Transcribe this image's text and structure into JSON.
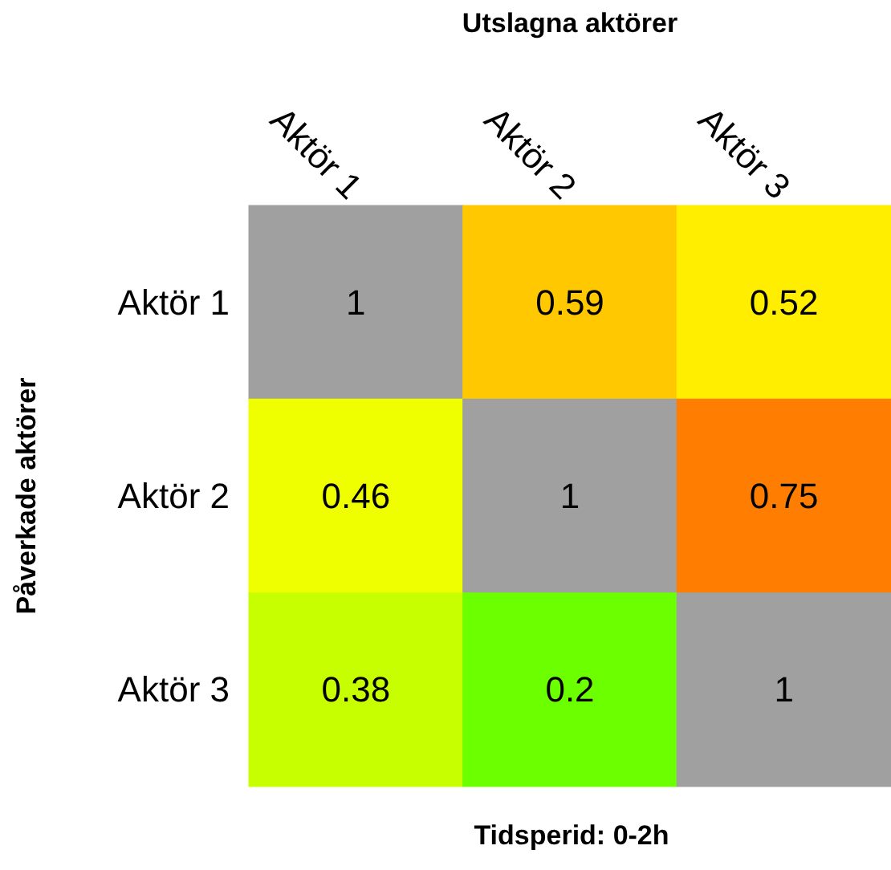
{
  "chart_data": {
    "type": "heatmap",
    "title": "Tidsperid: 0-2h",
    "xlabel": "Utslagna aktörer",
    "ylabel": "Påverkade aktörer",
    "categories": [
      "Aktör 1",
      "Aktör 2",
      "Aktör 3"
    ],
    "y_categories": [
      "Aktör 1",
      "Aktör 2",
      "Aktör 3"
    ],
    "cells": [
      [
        1,
        0.59,
        0.52
      ],
      [
        0.46,
        1,
        0.75
      ],
      [
        0.38,
        0.2,
        1
      ]
    ],
    "colors": [
      [
        "#a0a0a0",
        "#ffc800",
        "#ffee00"
      ],
      [
        "#f0ff00",
        "#a0a0a0",
        "#ff7d00"
      ],
      [
        "#c8ff00",
        "#6cff00",
        "#a0a0a0"
      ]
    ],
    "data_labels": true
  }
}
